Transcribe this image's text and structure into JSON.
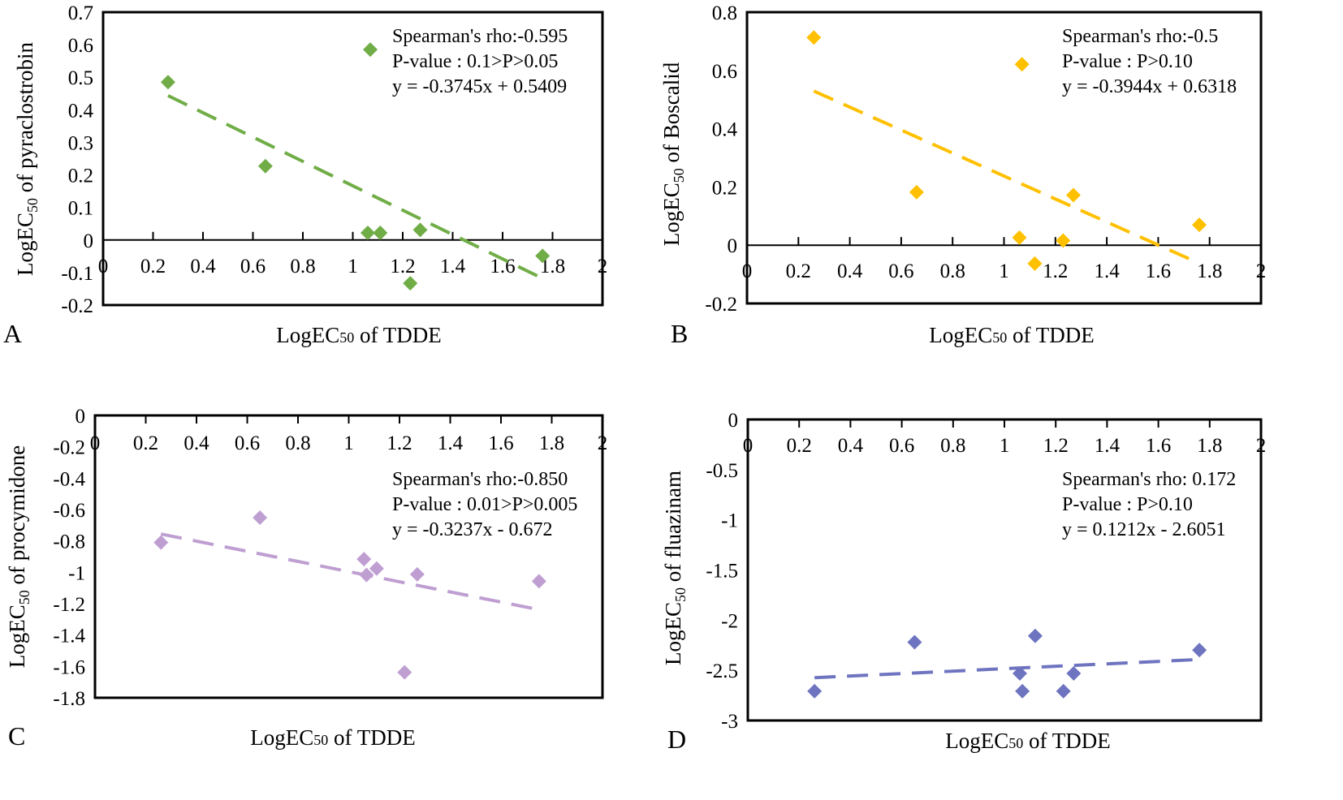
{
  "chart_data": [
    {
      "type": "scatter",
      "panel_label": "A",
      "xlabel": {
        "prefix": "LogEC",
        "sub": "50",
        "suffix": " of TDDE"
      },
      "ylabel": {
        "prefix": "LogEC",
        "sub": "50",
        "suffix": " of pyraclostrobin"
      },
      "xlim": [
        0,
        2
      ],
      "ylim": [
        -0.2,
        0.7
      ],
      "xticks": [
        "0",
        "0.2",
        "0.4",
        "0.6",
        "0.8",
        "1",
        "1.2",
        "1.4",
        "1.6",
        "1.8",
        "2"
      ],
      "yticks": [
        "-0.2",
        "-0.1",
        "0",
        "0.1",
        "0.2",
        "0.3",
        "0.4",
        "0.5",
        "0.6",
        "0.7"
      ],
      "color": "#70ad47",
      "points": [
        [
          0.26,
          0.485
        ],
        [
          0.65,
          0.227
        ],
        [
          1.06,
          0.022
        ],
        [
          1.07,
          0.585
        ],
        [
          1.11,
          0.022
        ],
        [
          1.23,
          -0.133
        ],
        [
          1.27,
          0.031
        ],
        [
          1.76,
          -0.049
        ]
      ],
      "trend": {
        "slope": -0.3745,
        "intercept": 0.5409,
        "x_range": [
          0.26,
          1.76
        ]
      },
      "annotations": [
        "Spearman's rho:-0.595",
        "P-value : 0.1>P>0.05",
        "y = -0.3745x + 0.5409"
      ]
    },
    {
      "type": "scatter",
      "panel_label": "B",
      "xlabel": {
        "prefix": "LogEC",
        "sub": "50",
        "suffix": " of TDDE"
      },
      "ylabel": {
        "prefix": "LogEC",
        "sub": "50",
        "suffix": " of Boscalid"
      },
      "xlim": [
        0,
        2
      ],
      "ylim": [
        -0.2,
        0.8
      ],
      "xticks": [
        "0",
        "0.2",
        "0.4",
        "0.6",
        "0.8",
        "1",
        "1.2",
        "1.4",
        "1.6",
        "1.8",
        "2"
      ],
      "yticks": [
        "-0.2",
        "0",
        "0.2",
        "0.4",
        "0.6",
        "0.8"
      ],
      "color": "#ffc000",
      "points": [
        [
          0.26,
          0.713
        ],
        [
          0.66,
          0.182
        ],
        [
          1.06,
          0.026
        ],
        [
          1.07,
          0.621
        ],
        [
          1.12,
          -0.063
        ],
        [
          1.23,
          0.016
        ],
        [
          1.27,
          0.172
        ],
        [
          1.76,
          0.07
        ]
      ],
      "trend": {
        "slope": -0.3944,
        "intercept": 0.6318,
        "x_range": [
          0.26,
          1.76
        ]
      },
      "annotations": [
        "Spearman's rho:-0.5",
        "P-value : P>0.10",
        "y = -0.3944x + 0.6318"
      ]
    },
    {
      "type": "scatter",
      "panel_label": "C",
      "xlabel": {
        "prefix": "LogEC",
        "sub": "50",
        "suffix": " of TDDE"
      },
      "ylabel": {
        "prefix": "LogEC",
        "sub": "50",
        "suffix": " of procymidone"
      },
      "xlim": [
        0,
        2
      ],
      "ylim": [
        -1.8,
        0
      ],
      "xticks": [
        "0",
        "0.2",
        "0.4",
        "0.6",
        "0.8",
        "1",
        "1.2",
        "1.4",
        "1.6",
        "1.8",
        "2"
      ],
      "yticks": [
        "-1.8",
        "-1.6",
        "-1.4",
        "-1.2",
        "-1",
        "-0.8",
        "-0.6",
        "-0.4",
        "-0.2",
        "0"
      ],
      "color": "#bf9fd2",
      "points": [
        [
          0.26,
          -0.81
        ],
        [
          0.65,
          -0.652
        ],
        [
          1.06,
          -0.916
        ],
        [
          1.07,
          -1.017
        ],
        [
          1.11,
          -0.976
        ],
        [
          1.22,
          -1.638
        ],
        [
          1.27,
          -1.013
        ],
        [
          1.75,
          -1.057
        ]
      ],
      "trend": {
        "slope": -0.3237,
        "intercept": -0.672,
        "x_range": [
          0.26,
          1.76
        ]
      },
      "annotations": [
        "Spearman's rho:-0.850",
        "P-value : 0.01>P>0.005",
        "y = -0.3237x - 0.672"
      ]
    },
    {
      "type": "scatter",
      "panel_label": "D",
      "xlabel": {
        "prefix": "LogEC",
        "sub": "50",
        "suffix": " of TDDE"
      },
      "ylabel": {
        "prefix": "LogEC",
        "sub": "50",
        "suffix": " of  fluazinam"
      },
      "xlim": [
        0,
        2
      ],
      "ylim": [
        -3,
        0
      ],
      "xticks": [
        "0",
        "0.2",
        "0.4",
        "0.6",
        "0.8",
        "1",
        "1.2",
        "1.4",
        "1.6",
        "1.8",
        "2"
      ],
      "yticks": [
        "-3",
        "-2.5",
        "-2",
        "-1.5",
        "-1",
        "-0.5",
        "0"
      ],
      "color": "#6f74c0",
      "points": [
        [
          0.26,
          -2.708
        ],
        [
          0.65,
          -2.22
        ],
        [
          1.06,
          -2.531
        ],
        [
          1.07,
          -2.708
        ],
        [
          1.12,
          -2.157
        ],
        [
          1.23,
          -2.708
        ],
        [
          1.27,
          -2.531
        ],
        [
          1.76,
          -2.299
        ]
      ],
      "trend": {
        "slope": 0.1212,
        "intercept": -2.6051,
        "x_range": [
          0.26,
          1.76
        ]
      },
      "annotations": [
        "Spearman's rho: 0.172",
        "P-value : P>0.10",
        "y = 0.1212x - 2.6051"
      ]
    }
  ]
}
